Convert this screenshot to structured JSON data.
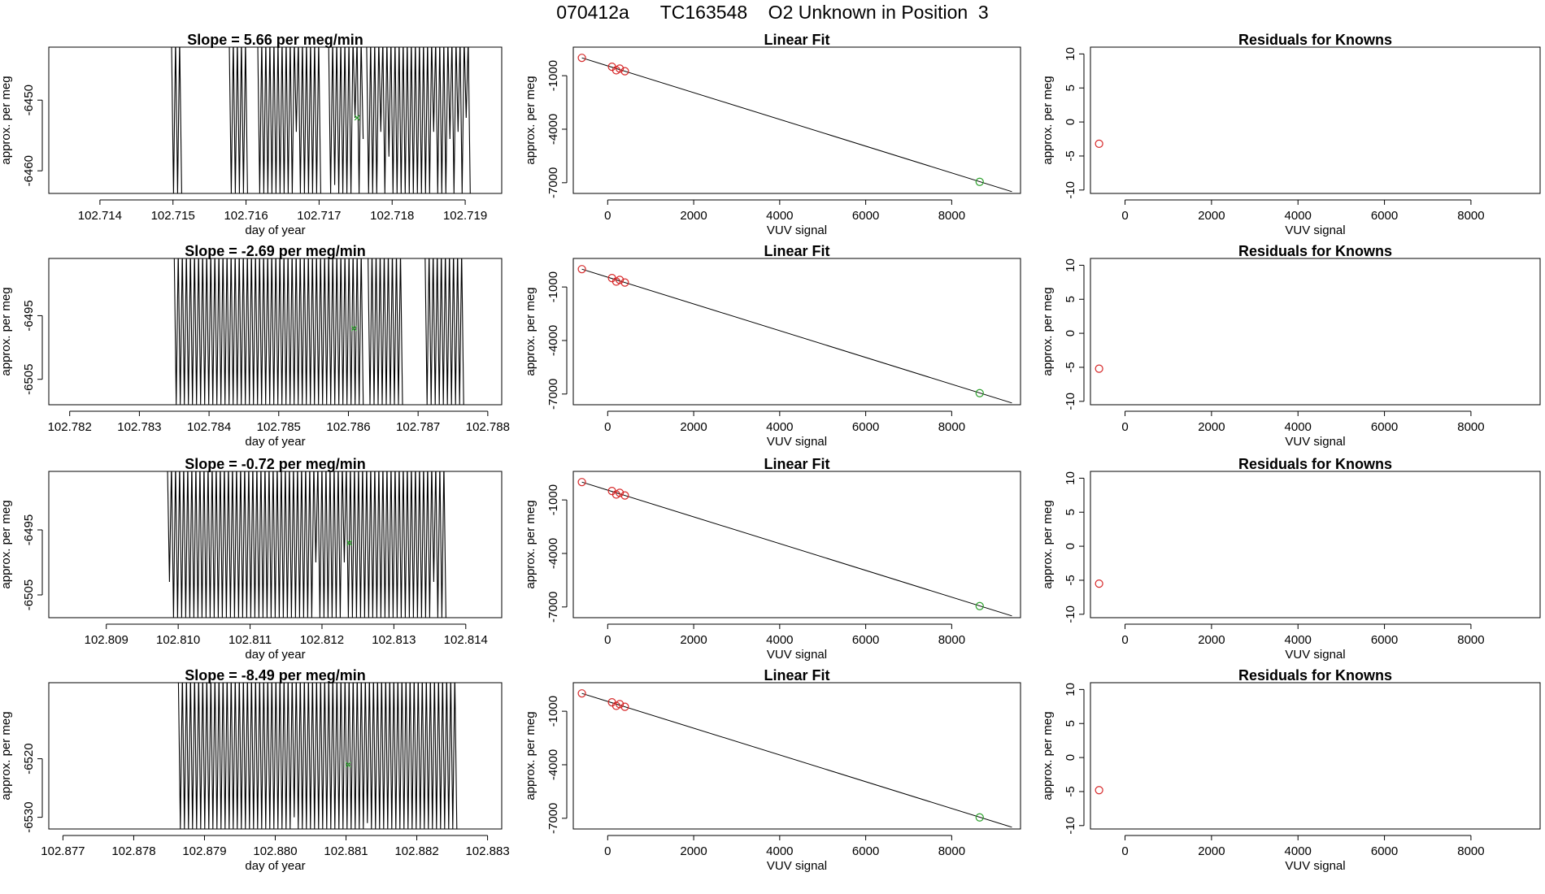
{
  "page": {
    "title": "070412a      TC163548    O2 Unknown in Position  3"
  },
  "chart_data": [
    {
      "type": "line",
      "title": "Slope =  5.66  per meg/min",
      "xlabel": "day of year",
      "ylabel": "approx. per meg",
      "xlim": [
        102.7133,
        102.7195
      ],
      "ylim": [
        -6463.2,
        -6442.5
      ],
      "xticks": [
        "102.714",
        "102.715",
        "102.716",
        "102.717",
        "102.718",
        "102.719"
      ],
      "yticks": [
        "-6450",
        "-6460"
      ],
      "ytick_values": [
        -6450,
        -6460
      ],
      "trace_segments": [
        [
          102.71498,
          102.7151
        ],
        [
          102.71577,
          102.71603
        ],
        [
          102.71616,
          102.71705
        ],
        [
          102.71713,
          102.7176
        ],
        [
          102.71765,
          102.71905
        ]
      ],
      "trace_bottoms": [
        -6463.2,
        -6454.5,
        -6452.5,
        -6455.5,
        -6458,
        -6462,
        -6463.2
      ],
      "fit_point": {
        "x": 102.71752,
        "y": -6452.5
      }
    },
    {
      "type": "scatter",
      "title": "Linear Fit",
      "xlabel": "VUV signal",
      "ylabel": "approx. per meg",
      "xlim": [
        -800,
        9600
      ],
      "ylim": [
        -7600,
        600
      ],
      "xticks": [
        "0",
        "2000",
        "4000",
        "6000",
        "8000"
      ],
      "yticks": [
        "-1000",
        "-4000",
        "-7000"
      ],
      "ytick_values": [
        -1000,
        -4000,
        -7000
      ],
      "knowns": [
        [
          -600,
          0
        ],
        [
          100,
          -500
        ],
        [
          200,
          -700
        ],
        [
          280,
          -600
        ],
        [
          400,
          -750
        ]
      ],
      "unknown": [
        8650,
        -6950
      ],
      "fit_line": [
        [
          -600,
          0
        ],
        [
          9400,
          -7500
        ]
      ]
    },
    {
      "type": "scatter",
      "title": "Residuals for Knowns",
      "xlabel": "VUV signal",
      "ylabel": "approx. per meg",
      "xlim": [
        -800,
        9600
      ],
      "ylim": [
        -10.5,
        11
      ],
      "xticks": [
        "0",
        "2000",
        "4000",
        "6000",
        "8000"
      ],
      "yticks": [
        "10",
        "5",
        "0",
        "-5",
        "-10"
      ],
      "ytick_values": [
        10,
        5,
        0,
        -5,
        -10
      ],
      "residuals": [
        [
          -600,
          -3.2
        ]
      ]
    },
    {
      "type": "line",
      "title": "Slope =  -2.69  per meg/min",
      "xlabel": "day of year",
      "ylabel": "approx. per meg",
      "xlim": [
        102.7817,
        102.7882
      ],
      "ylim": [
        -6509,
        -6486
      ],
      "xticks": [
        "102.782",
        "102.783",
        "102.784",
        "102.785",
        "102.786",
        "102.787",
        "102.788"
      ],
      "yticks": [
        "-6495",
        "-6505"
      ],
      "ytick_values": [
        -6495,
        -6505
      ],
      "trace_segments": [
        [
          102.7835,
          102.7862
        ],
        [
          102.78628,
          102.78678
        ],
        [
          102.7871,
          102.78765
        ]
      ],
      "trace_bottoms": [
        -6509,
        -6509,
        -6509
      ],
      "fit_point": {
        "x": 102.78608,
        "y": -6497
      }
    },
    {
      "type": "scatter",
      "title": "Linear Fit",
      "xlabel": "VUV signal",
      "ylabel": "approx. per meg",
      "xlim": [
        -800,
        9600
      ],
      "ylim": [
        -7600,
        600
      ],
      "xticks": [
        "0",
        "2000",
        "4000",
        "6000",
        "8000"
      ],
      "yticks": [
        "-1000",
        "-4000",
        "-7000"
      ],
      "ytick_values": [
        -1000,
        -4000,
        -7000
      ],
      "knowns": [
        [
          -600,
          0
        ],
        [
          100,
          -500
        ],
        [
          200,
          -700
        ],
        [
          280,
          -600
        ],
        [
          400,
          -750
        ]
      ],
      "unknown": [
        8650,
        -6950
      ],
      "fit_line": [
        [
          -600,
          0
        ],
        [
          9400,
          -7500
        ]
      ]
    },
    {
      "type": "scatter",
      "title": "Residuals for Knowns",
      "xlabel": "VUV signal",
      "ylabel": "approx. per meg",
      "xlim": [
        -800,
        9600
      ],
      "ylim": [
        -10.5,
        11
      ],
      "xticks": [
        "0",
        "2000",
        "4000",
        "6000",
        "8000"
      ],
      "yticks": [
        "10",
        "5",
        "0",
        "-5",
        "-10"
      ],
      "ytick_values": [
        10,
        5,
        0,
        -5,
        -10
      ],
      "residuals": [
        [
          -600,
          -5.2
        ]
      ]
    },
    {
      "type": "line",
      "title": "Slope =  -0.72  per meg/min",
      "xlabel": "day of year",
      "ylabel": "approx. per meg",
      "xlim": [
        102.8082,
        102.8145
      ],
      "ylim": [
        -6508.5,
        -6486
      ],
      "xticks": [
        "102.809",
        "102.810",
        "102.811",
        "102.812",
        "102.813",
        "102.814"
      ],
      "yticks": [
        "-6495",
        "-6505"
      ],
      "ytick_values": [
        -6495,
        -6505
      ],
      "trace_segments": [
        [
          102.80985,
          102.81375
        ]
      ],
      "trace_bottoms": [
        -6500,
        -6503,
        -6508.5,
        -6508.5
      ],
      "fit_point": {
        "x": 102.81238,
        "y": -6497
      }
    },
    {
      "type": "scatter",
      "title": "Linear Fit",
      "xlabel": "VUV signal",
      "ylabel": "approx. per meg",
      "xlim": [
        -800,
        9600
      ],
      "ylim": [
        -7600,
        600
      ],
      "xticks": [
        "0",
        "2000",
        "4000",
        "6000",
        "8000"
      ],
      "yticks": [
        "-1000",
        "-4000",
        "-7000"
      ],
      "ytick_values": [
        -1000,
        -4000,
        -7000
      ],
      "knowns": [
        [
          -600,
          0
        ],
        [
          100,
          -500
        ],
        [
          200,
          -700
        ],
        [
          280,
          -600
        ],
        [
          400,
          -750
        ]
      ],
      "unknown": [
        8650,
        -6950
      ],
      "fit_line": [
        [
          -600,
          0
        ],
        [
          9400,
          -7500
        ]
      ]
    },
    {
      "type": "scatter",
      "title": "Residuals for Knowns",
      "xlabel": "VUV signal",
      "ylabel": "approx. per meg",
      "xlim": [
        -800,
        9600
      ],
      "ylim": [
        -10.5,
        11
      ],
      "xticks": [
        "0",
        "2000",
        "4000",
        "6000",
        "8000"
      ],
      "yticks": [
        "10",
        "5",
        "0",
        "-5",
        "-10"
      ],
      "ytick_values": [
        10,
        5,
        0,
        -5,
        -10
      ],
      "residuals": [
        [
          -600,
          -5.5
        ]
      ]
    },
    {
      "type": "line",
      "title": "Slope =  -8.49  per meg/min",
      "xlabel": "day of year",
      "ylabel": "approx. per meg",
      "xlim": [
        102.8768,
        102.8832
      ],
      "ylim": [
        -6532,
        -6507
      ],
      "xticks": [
        "102.877",
        "102.878",
        "102.879",
        "102.880",
        "102.881",
        "102.882",
        "102.883"
      ],
      "yticks": [
        "-6520",
        "-6530"
      ],
      "ytick_values": [
        -6520,
        -6530
      ],
      "trace_segments": [
        [
          102.87863,
          102.88255
        ]
      ],
      "trace_bottoms": [
        -6520,
        -6532,
        -6530,
        -6531,
        -6532
      ],
      "fit_point": {
        "x": 102.88103,
        "y": -6521
      }
    },
    {
      "type": "scatter",
      "title": "Linear Fit",
      "xlabel": "VUV signal",
      "ylabel": "approx. per meg",
      "xlim": [
        -800,
        9600
      ],
      "ylim": [
        -7600,
        600
      ],
      "xticks": [
        "0",
        "2000",
        "4000",
        "6000",
        "8000"
      ],
      "yticks": [
        "-1000",
        "-4000",
        "-7000"
      ],
      "ytick_values": [
        -1000,
        -4000,
        -7000
      ],
      "knowns": [
        [
          -600,
          0
        ],
        [
          100,
          -500
        ],
        [
          200,
          -700
        ],
        [
          280,
          -600
        ],
        [
          400,
          -750
        ]
      ],
      "unknown": [
        8650,
        -6950
      ],
      "fit_line": [
        [
          -600,
          0
        ],
        [
          9400,
          -7500
        ]
      ]
    },
    {
      "type": "scatter",
      "title": "Residuals for Knowns",
      "xlabel": "VUV signal",
      "ylabel": "approx. per meg",
      "xlim": [
        -800,
        9600
      ],
      "ylim": [
        -10.5,
        11
      ],
      "xticks": [
        "0",
        "2000",
        "4000",
        "6000",
        "8000"
      ],
      "yticks": [
        "10",
        "5",
        "0",
        "-5",
        "-10"
      ],
      "ytick_values": [
        10,
        5,
        0,
        -5,
        -10
      ],
      "residuals": [
        [
          -600,
          -4.8
        ]
      ]
    }
  ],
  "colors": {
    "known_point": "#d62728",
    "unknown_point": "#2ca02c",
    "axis": "#000000",
    "trace": "#000000"
  }
}
